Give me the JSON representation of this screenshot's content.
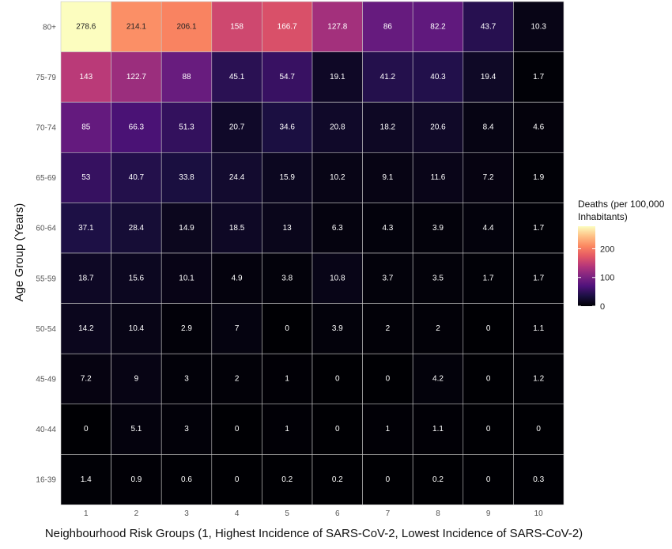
{
  "chart_data": {
    "type": "heatmap",
    "xlabel": "Neighbourhood Risk Groups (1, Highest Incidence of SARS-CoV-2, Lowest Incidence of SARS-CoV-2)",
    "ylabel": "Age Group (Years)",
    "x_categories": [
      "1",
      "2",
      "3",
      "4",
      "5",
      "6",
      "7",
      "8",
      "9",
      "10"
    ],
    "y_categories": [
      "80+",
      "75-79",
      "70-74",
      "65-69",
      "60-64",
      "55-59",
      "50-54",
      "45-49",
      "40-44",
      "16-39"
    ],
    "values": [
      [
        "278.6",
        "214.1",
        "206.1",
        "158",
        "166.7",
        "127.8",
        "86",
        "82.2",
        "43.7",
        "10.3"
      ],
      [
        "143",
        "122.7",
        "88",
        "45.1",
        "54.7",
        "19.1",
        "41.2",
        "40.3",
        "19.4",
        "1.7"
      ],
      [
        "85",
        "66.3",
        "51.3",
        "20.7",
        "34.6",
        "20.8",
        "18.2",
        "20.6",
        "8.4",
        "4.6"
      ],
      [
        "53",
        "40.7",
        "33.8",
        "24.4",
        "15.9",
        "10.2",
        "9.1",
        "11.6",
        "7.2",
        "1.9"
      ],
      [
        "37.1",
        "28.4",
        "14.9",
        "18.5",
        "13",
        "6.3",
        "4.3",
        "3.9",
        "4.4",
        "1.7"
      ],
      [
        "18.7",
        "15.6",
        "10.1",
        "4.9",
        "3.8",
        "10.8",
        "3.7",
        "3.5",
        "1.7",
        "1.7"
      ],
      [
        "14.2",
        "10.4",
        "2.9",
        "7",
        "0",
        "3.9",
        "2",
        "2",
        "0",
        "1.1"
      ],
      [
        "7.2",
        "9",
        "3",
        "2",
        "1",
        "0",
        "0",
        "4.2",
        "0",
        "1.2"
      ],
      [
        "0",
        "5.1",
        "3",
        "0",
        "1",
        "0",
        "1",
        "1.1",
        "0",
        "0"
      ],
      [
        "1.4",
        "0.9",
        "0.6",
        "0",
        "0.2",
        "0.2",
        "0",
        "0.2",
        "0",
        "0.3"
      ]
    ],
    "legend": {
      "title_lines": [
        "Deaths (per 100,000",
        "Inhabitants)"
      ],
      "ticks": [
        "0",
        "100",
        "200"
      ],
      "range": [
        0,
        278.6
      ],
      "colormap": "magma",
      "placement": "right"
    },
    "grid": true
  }
}
